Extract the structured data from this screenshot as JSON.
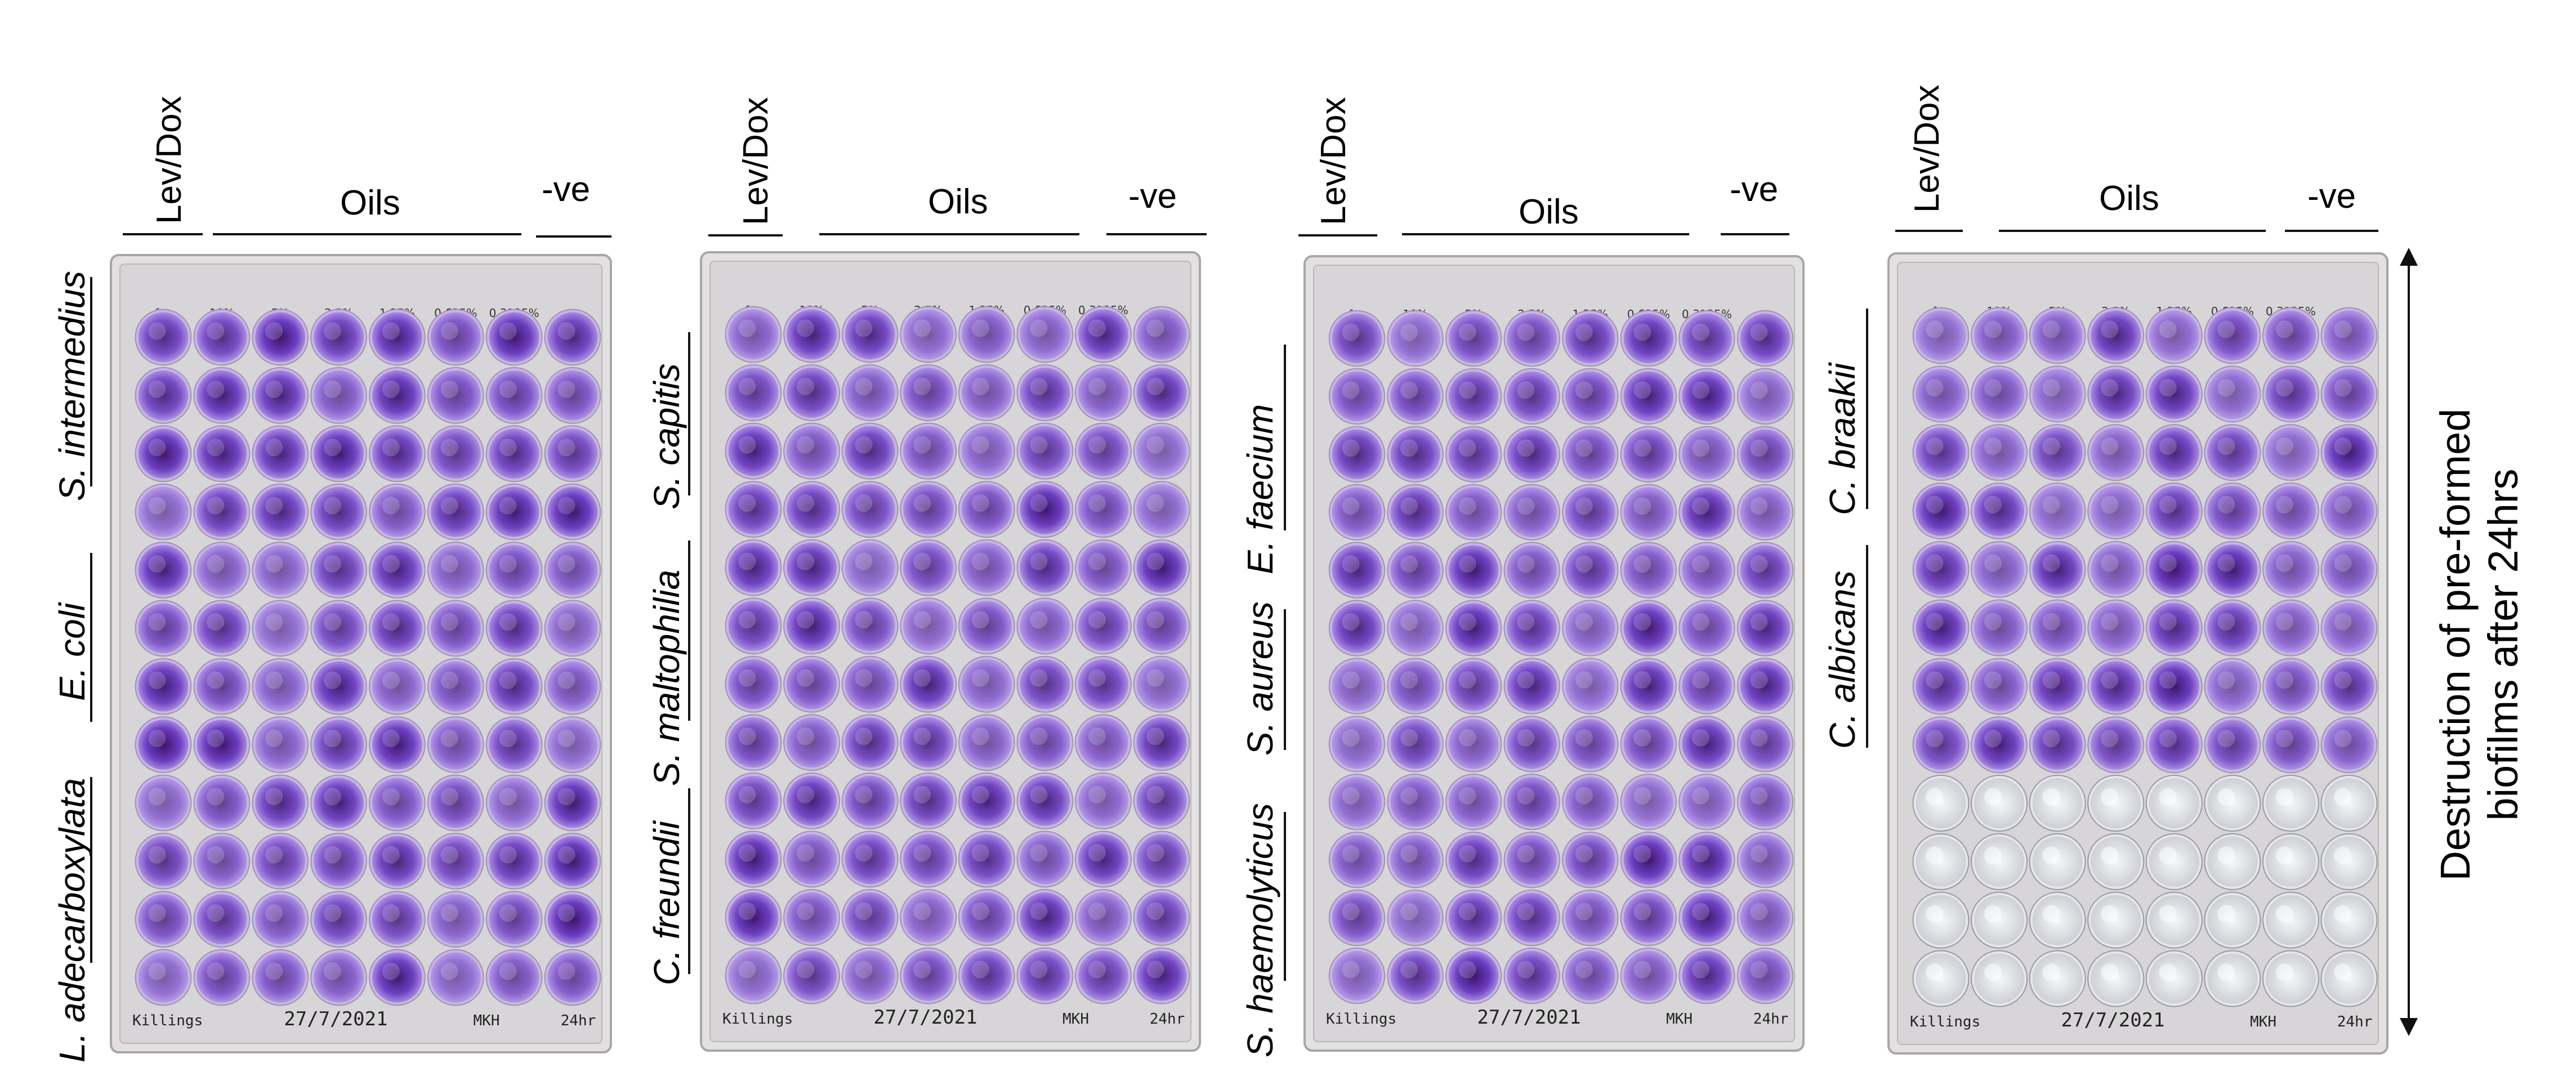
{
  "column_headers": {
    "lev_dox": "Lev/Dox",
    "oils": "Oils",
    "negative": "-ve"
  },
  "plates": [
    {
      "species": [
        "S. intermedius",
        "E. coli",
        "L. adecarboxylata"
      ],
      "top_labels": [
        "fac",
        "10%",
        "5%",
        "2.5%",
        "1.25%",
        "0.625%",
        "0.3125%",
        "-ve"
      ],
      "bottom_text": [
        "Killings",
        "27/7/2021",
        "MKH",
        "24hr"
      ],
      "empty_rows": 0
    },
    {
      "species": [
        "S. capitis",
        "S. maltophilia",
        "C. freundii"
      ],
      "top_labels": [
        "fac",
        "10%",
        "5%",
        "2.5%",
        "1.25%",
        "0.625%",
        "0.3125%",
        "-ve"
      ],
      "bottom_text": [
        "Killings",
        "27/7/2021",
        "MKH",
        "24hr"
      ],
      "empty_rows": 0
    },
    {
      "species": [
        "E. faecium",
        "S. aureus",
        "S. haemolyticus"
      ],
      "top_labels": [
        "fac",
        "10%",
        "5%",
        "2.5%",
        "1.25%",
        "0.625%",
        "0.3125%",
        "-ve"
      ],
      "bottom_text": [
        "Killings",
        "27/7/2021",
        "MKH",
        "24hr"
      ],
      "empty_rows": 0
    },
    {
      "species": [
        "C. braakii",
        "C. albicans"
      ],
      "top_labels": [
        "fac",
        "10%",
        "5%",
        "2.5%",
        "1.25%",
        "0.625%",
        "0.3125%",
        "-ve"
      ],
      "bottom_text": [
        "Killings",
        "27/7/2021",
        "MKH",
        "24hr"
      ],
      "empty_rows": 4
    }
  ],
  "side_caption": {
    "line1": "Destruction of pre-formed",
    "line2": "biofilms after 24hrs"
  },
  "colors": {
    "well_light": "#b79be8",
    "well_dark": "#3a1266",
    "well_mid": "#6a3cc0",
    "plate_bg": "#e3e0e2",
    "plate_border": "#a9a6a8",
    "empty_well": "#eef0f2"
  }
}
